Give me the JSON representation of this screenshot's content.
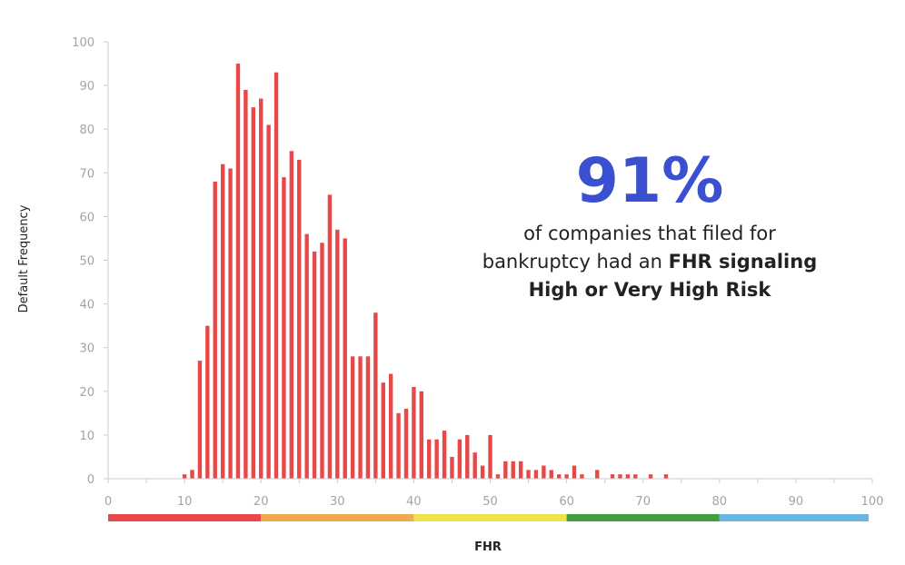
{
  "chart_data": {
    "type": "bar",
    "xlabel": "FHR",
    "ylabel": "Default Frequency",
    "xlim": [
      0,
      100
    ],
    "ylim": [
      0,
      100
    ],
    "xticks": [
      0,
      10,
      20,
      30,
      40,
      50,
      60,
      70,
      80,
      90,
      100
    ],
    "yticks": [
      0,
      10,
      20,
      30,
      40,
      50,
      60,
      70,
      80,
      90,
      100
    ],
    "grid": false,
    "bar_color": "#e84848",
    "x": [
      10,
      11,
      12,
      13,
      14,
      15,
      16,
      17,
      18,
      19,
      20,
      21,
      22,
      23,
      24,
      25,
      26,
      27,
      28,
      29,
      30,
      31,
      32,
      33,
      34,
      35,
      36,
      37,
      38,
      39,
      40,
      41,
      42,
      43,
      44,
      45,
      46,
      47,
      48,
      49,
      50,
      51,
      52,
      53,
      54,
      55,
      56,
      57,
      58,
      59,
      60,
      61,
      62,
      63,
      64,
      65,
      66,
      67,
      68,
      69,
      70,
      71,
      72,
      73
    ],
    "values": [
      1,
      2,
      27,
      35,
      68,
      72,
      71,
      95,
      89,
      85,
      87,
      81,
      93,
      69,
      75,
      73,
      56,
      52,
      54,
      65,
      57,
      55,
      28,
      28,
      28,
      38,
      22,
      24,
      15,
      16,
      21,
      20,
      9,
      9,
      11,
      5,
      9,
      10,
      6,
      3,
      10,
      1,
      4,
      4,
      4,
      2,
      2,
      3,
      2,
      1,
      1,
      3,
      1,
      0,
      2,
      0,
      1,
      1,
      1,
      1,
      0,
      1,
      0,
      1
    ],
    "risk_bands": [
      {
        "from": 0,
        "to": 20,
        "color": "#e84848"
      },
      {
        "from": 20,
        "to": 40,
        "color": "#f0a94d"
      },
      {
        "from": 40,
        "to": 60,
        "color": "#efe24b"
      },
      {
        "from": 60,
        "to": 80,
        "color": "#3f9f3f"
      },
      {
        "from": 80,
        "to": 100,
        "color": "#6ab6e3"
      }
    ],
    "annotation": {
      "headline": "91%",
      "line1": "of companies that filed for",
      "line2_plain": "bankruptcy had an ",
      "line2_bold": "FHR signaling",
      "line3_bold": "High or Very High Risk",
      "headline_color": "#3b4fd1"
    }
  }
}
